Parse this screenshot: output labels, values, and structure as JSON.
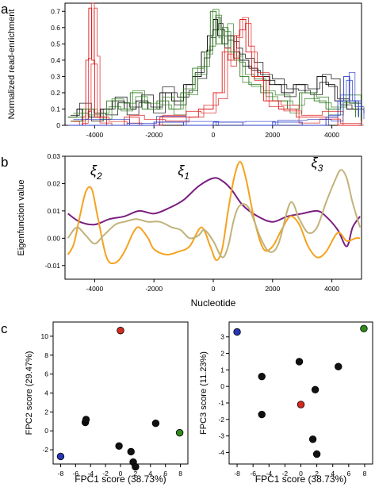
{
  "chart_data": [
    {
      "panel_letter": "a",
      "type": "line",
      "ylabel": "Normalized read-enrichment",
      "xlim": [
        -5000,
        5000
      ],
      "ylim": [
        0,
        0.75
      ],
      "xticks": [
        "-4000",
        "-2000",
        "0",
        "2000",
        "4000"
      ],
      "yticks": [
        "0",
        "0.1",
        "0.2",
        "0.3",
        "0.4",
        "0.5",
        "0.6",
        "0.7"
      ],
      "grid": false,
      "series_colors": [
        "#000000",
        "#2e7d1e",
        "#e01818",
        "#2a3cc8"
      ],
      "series": [
        {
          "color": "#000000",
          "points": [
            [
              -4900,
              0.05
            ],
            [
              -4600,
              0.1
            ],
            [
              -4200,
              0.05
            ],
            [
              -3800,
              0.1
            ],
            [
              -3400,
              0.15
            ],
            [
              -3000,
              0.1
            ],
            [
              -2600,
              0.15
            ],
            [
              -2200,
              0.1
            ],
            [
              -1800,
              0.2
            ],
            [
              -1400,
              0.15
            ],
            [
              -1000,
              0.25
            ],
            [
              -700,
              0.3
            ],
            [
              -400,
              0.45
            ],
            [
              -200,
              0.55
            ],
            [
              0,
              0.65
            ],
            [
              150,
              0.55
            ],
            [
              300,
              0.5
            ],
            [
              500,
              0.55
            ],
            [
              700,
              0.45
            ],
            [
              900,
              0.4
            ],
            [
              1200,
              0.35
            ],
            [
              1500,
              0.3
            ],
            [
              1900,
              0.25
            ],
            [
              2300,
              0.2
            ],
            [
              2700,
              0.25
            ],
            [
              3100,
              0.2
            ],
            [
              3500,
              0.3
            ],
            [
              3800,
              0.25
            ],
            [
              4100,
              0.15
            ],
            [
              4500,
              0.1
            ],
            [
              4900,
              0.05
            ]
          ]
        },
        {
          "color": "#2e7d1e",
          "points": [
            [
              -4900,
              0.05
            ],
            [
              -4400,
              0.1
            ],
            [
              -4000,
              0.05
            ],
            [
              -3600,
              0.15
            ],
            [
              -3200,
              0.1
            ],
            [
              -2800,
              0.2
            ],
            [
              -2400,
              0.1
            ],
            [
              -1900,
              0.15
            ],
            [
              -1500,
              0.1
            ],
            [
              -1100,
              0.2
            ],
            [
              -700,
              0.35
            ],
            [
              -300,
              0.45
            ],
            [
              -100,
              0.7
            ],
            [
              100,
              0.5
            ],
            [
              300,
              0.6
            ],
            [
              500,
              0.45
            ],
            [
              700,
              0.4
            ],
            [
              900,
              0.3
            ],
            [
              1200,
              0.25
            ],
            [
              1600,
              0.2
            ],
            [
              2000,
              0.15
            ],
            [
              2500,
              0.1
            ],
            [
              2900,
              0.2
            ],
            [
              3400,
              0.15
            ],
            [
              3800,
              0.1
            ],
            [
              4300,
              0.15
            ],
            [
              4800,
              0.05
            ]
          ]
        },
        {
          "color": "#e01818",
          "points": [
            [
              -4900,
              0.0
            ],
            [
              -4600,
              0.0
            ],
            [
              -4400,
              0.05
            ],
            [
              -4300,
              0.4
            ],
            [
              -4200,
              0.72
            ],
            [
              -4100,
              0.4
            ],
            [
              -4000,
              0.05
            ],
            [
              -3600,
              0.0
            ],
            [
              -3000,
              0.05
            ],
            [
              -2500,
              0.0
            ],
            [
              -1800,
              0.05
            ],
            [
              -1000,
              0.05
            ],
            [
              -500,
              0.1
            ],
            [
              0,
              0.2
            ],
            [
              300,
              0.45
            ],
            [
              500,
              0.4
            ],
            [
              700,
              0.55
            ],
            [
              900,
              0.65
            ],
            [
              1100,
              0.45
            ],
            [
              1300,
              0.3
            ],
            [
              1700,
              0.15
            ],
            [
              2200,
              0.1
            ],
            [
              2800,
              0.05
            ],
            [
              3500,
              0.05
            ],
            [
              4200,
              0.0
            ],
            [
              4900,
              0.0
            ]
          ]
        },
        {
          "color": "#2a3cc8",
          "points": [
            [
              -4900,
              0.0
            ],
            [
              -3000,
              0.0
            ],
            [
              -2000,
              0.02
            ],
            [
              -1000,
              0.0
            ],
            [
              0,
              0.02
            ],
            [
              1000,
              0.0
            ],
            [
              2000,
              0.02
            ],
            [
              3000,
              0.0
            ],
            [
              3800,
              0.05
            ],
            [
              4200,
              0.15
            ],
            [
              4400,
              0.3
            ],
            [
              4600,
              0.15
            ],
            [
              4900,
              0.05
            ]
          ]
        }
      ]
    },
    {
      "panel_letter": "b",
      "type": "line",
      "xlabel": "Nucleotide",
      "ylabel": "Eigenfunction value",
      "xlim": [
        -5000,
        5000
      ],
      "ylim": [
        -0.015,
        0.03
      ],
      "xticks": [
        "-4000",
        "-2000",
        "0",
        "2000",
        "4000"
      ],
      "yticks": [
        "-0.01",
        "0.00",
        "0.01",
        "0.02",
        "0.03"
      ],
      "grid": false,
      "annotations": [
        {
          "label": "ξ",
          "subscript": "2",
          "x": -3950,
          "y": 0.023
        },
        {
          "label": "ξ",
          "subscript": "1",
          "x": -1000,
          "y": 0.023
        },
        {
          "label": "ξ",
          "subscript": "3",
          "x": 3500,
          "y": 0.026
        }
      ],
      "series": [
        {
          "name": "ξ1",
          "color": "#7a1f80",
          "points": [
            [
              -4900,
              0.009
            ],
            [
              -4500,
              0.006
            ],
            [
              -4000,
              0.005
            ],
            [
              -3500,
              0.007
            ],
            [
              -3000,
              0.008
            ],
            [
              -2500,
              0.01
            ],
            [
              -2000,
              0.009
            ],
            [
              -1500,
              0.011
            ],
            [
              -1000,
              0.014
            ],
            [
              -500,
              0.019
            ],
            [
              0,
              0.022
            ],
            [
              300,
              0.021
            ],
            [
              600,
              0.018
            ],
            [
              1000,
              0.012
            ],
            [
              1500,
              0.008
            ],
            [
              2000,
              0.006
            ],
            [
              2500,
              0.008
            ],
            [
              3000,
              0.009
            ],
            [
              3500,
              0.01
            ],
            [
              3800,
              0.008
            ],
            [
              4200,
              0.003
            ],
            [
              4500,
              -0.003
            ],
            [
              4700,
              0.004
            ],
            [
              4950,
              0.008
            ]
          ]
        },
        {
          "name": "ξ2",
          "color": "#f5a21e",
          "points": [
            [
              -4900,
              -0.006
            ],
            [
              -4700,
              -0.002
            ],
            [
              -4500,
              0.008
            ],
            [
              -4300,
              0.017
            ],
            [
              -4100,
              0.018
            ],
            [
              -3900,
              0.008
            ],
            [
              -3600,
              -0.007
            ],
            [
              -3300,
              -0.009
            ],
            [
              -3000,
              -0.005
            ],
            [
              -2700,
              0.002
            ],
            [
              -2500,
              0.004
            ],
            [
              -2200,
              0.0
            ],
            [
              -2000,
              -0.004
            ],
            [
              -1600,
              -0.006
            ],
            [
              -1200,
              -0.005
            ],
            [
              -800,
              -0.003
            ],
            [
              -400,
              0.004
            ],
            [
              -100,
              -0.003
            ],
            [
              100,
              -0.008
            ],
            [
              300,
              -0.004
            ],
            [
              500,
              0.01
            ],
            [
              700,
              0.022
            ],
            [
              900,
              0.028
            ],
            [
              1100,
              0.022
            ],
            [
              1400,
              0.006
            ],
            [
              1700,
              -0.004
            ],
            [
              2000,
              -0.003
            ],
            [
              2300,
              0.003
            ],
            [
              2600,
              0.008
            ],
            [
              2900,
              0.005
            ],
            [
              3200,
              -0.003
            ],
            [
              3500,
              -0.007
            ],
            [
              3800,
              -0.005
            ],
            [
              4200,
              0.002
            ],
            [
              4500,
              -0.001
            ],
            [
              4800,
              0.0
            ],
            [
              4950,
              0.0
            ]
          ]
        },
        {
          "name": "ξ3",
          "color": "#c2b27a",
          "points": [
            [
              -4900,
              0.0
            ],
            [
              -4600,
              0.004
            ],
            [
              -4300,
              0.001
            ],
            [
              -4000,
              -0.002
            ],
            [
              -3700,
              0.001
            ],
            [
              -3300,
              0.005
            ],
            [
              -3000,
              0.006
            ],
            [
              -2600,
              0.007
            ],
            [
              -2200,
              0.006
            ],
            [
              -1800,
              0.006
            ],
            [
              -1400,
              0.004
            ],
            [
              -1100,
              0.003
            ],
            [
              -800,
              0.0
            ],
            [
              -500,
              0.001
            ],
            [
              -300,
              0.003
            ],
            [
              0,
              -0.001
            ],
            [
              300,
              -0.007
            ],
            [
              500,
              -0.003
            ],
            [
              700,
              0.007
            ],
            [
              900,
              0.012
            ],
            [
              1200,
              0.011
            ],
            [
              1600,
              0.0
            ],
            [
              1900,
              -0.005
            ],
            [
              2200,
              -0.002
            ],
            [
              2600,
              0.013
            ],
            [
              2900,
              0.007
            ],
            [
              3200,
              0.002
            ],
            [
              3500,
              0.004
            ],
            [
              3800,
              0.013
            ],
            [
              4100,
              0.021
            ],
            [
              4300,
              0.025
            ],
            [
              4500,
              0.022
            ],
            [
              4700,
              0.013
            ],
            [
              4950,
              0.004
            ]
          ]
        }
      ]
    },
    {
      "panel_letter": "c",
      "type": "scatter",
      "xlabel": "FPC1 score (38.73%)",
      "ylabel": "FPC2 score (29.47%)",
      "xlim": [
        -9,
        9
      ],
      "ylim": [
        -3.5,
        11.5
      ],
      "xticks": [
        "-8",
        "-6",
        "-4",
        "-2",
        "0",
        "2",
        "4",
        "6",
        "8"
      ],
      "yticks": [
        "-2",
        "0",
        "2",
        "4",
        "6",
        "8",
        "10"
      ],
      "grid": false,
      "points": [
        {
          "x": -8.0,
          "y": -2.7,
          "color": "#2838b4"
        },
        {
          "x": -4.7,
          "y": 0.9,
          "color": "#111111"
        },
        {
          "x": -4.6,
          "y": 1.2,
          "color": "#111111"
        },
        {
          "x": -0.2,
          "y": -1.6,
          "color": "#111111"
        },
        {
          "x": 0.0,
          "y": 10.6,
          "color": "#d62a20"
        },
        {
          "x": 1.4,
          "y": -2.2,
          "color": "#111111"
        },
        {
          "x": 1.7,
          "y": -3.3,
          "color": "#111111"
        },
        {
          "x": 2.0,
          "y": -3.8,
          "color": "#111111"
        },
        {
          "x": 4.7,
          "y": 0.8,
          "color": "#111111"
        },
        {
          "x": 7.9,
          "y": -0.2,
          "color": "#2f8a1e"
        }
      ]
    },
    {
      "panel_letter": "",
      "type": "scatter",
      "xlabel": "FPC1 score (38.73%)",
      "ylabel": "FPC3 score (11.23%)",
      "xlim": [
        -9,
        9
      ],
      "ylim": [
        -4.7,
        3.9
      ],
      "xticks": [
        "-8",
        "-6",
        "-4",
        "-2",
        "0",
        "2",
        "4",
        "6",
        "8"
      ],
      "yticks": [
        "-4",
        "-3",
        "-2",
        "-1",
        "0",
        "1",
        "2",
        "3"
      ],
      "grid": false,
      "points": [
        {
          "x": -8.0,
          "y": 3.3,
          "color": "#2838b4"
        },
        {
          "x": -4.9,
          "y": 0.6,
          "color": "#111111"
        },
        {
          "x": -4.9,
          "y": -1.7,
          "color": "#111111"
        },
        {
          "x": -0.2,
          "y": 1.5,
          "color": "#111111"
        },
        {
          "x": 0.0,
          "y": -1.1,
          "color": "#d62a20"
        },
        {
          "x": 1.5,
          "y": -3.2,
          "color": "#111111"
        },
        {
          "x": 1.8,
          "y": -0.2,
          "color": "#111111"
        },
        {
          "x": 2.0,
          "y": -4.1,
          "color": "#111111"
        },
        {
          "x": 4.7,
          "y": 1.2,
          "color": "#111111"
        },
        {
          "x": 7.9,
          "y": 3.5,
          "color": "#2f8a1e"
        }
      ]
    }
  ]
}
